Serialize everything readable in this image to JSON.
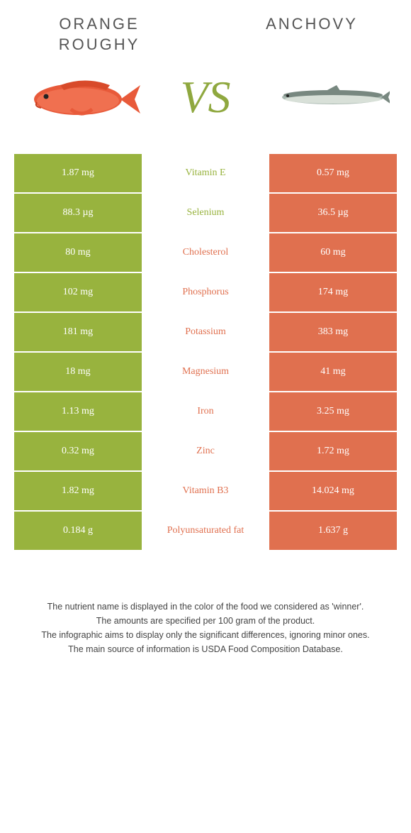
{
  "header": {
    "left_title_line1": "ORANGE",
    "left_title_line2": "ROUGHY",
    "right_title": "ANCHOVY",
    "vs": "VS"
  },
  "colors": {
    "green": "#98b33e",
    "orange": "#e0704f",
    "white": "#ffffff"
  },
  "rows": [
    {
      "left": "1.87 mg",
      "label": "Vitamin E",
      "right": "0.57 mg",
      "winner": "left"
    },
    {
      "left": "88.3 µg",
      "label": "Selenium",
      "right": "36.5 µg",
      "winner": "left"
    },
    {
      "left": "80 mg",
      "label": "Cholesterol",
      "right": "60 mg",
      "winner": "right"
    },
    {
      "left": "102 mg",
      "label": "Phosphorus",
      "right": "174 mg",
      "winner": "right"
    },
    {
      "left": "181 mg",
      "label": "Potassium",
      "right": "383 mg",
      "winner": "right"
    },
    {
      "left": "18 mg",
      "label": "Magnesium",
      "right": "41 mg",
      "winner": "right"
    },
    {
      "left": "1.13 mg",
      "label": "Iron",
      "right": "3.25 mg",
      "winner": "right"
    },
    {
      "left": "0.32 mg",
      "label": "Zinc",
      "right": "1.72 mg",
      "winner": "right"
    },
    {
      "left": "1.82 mg",
      "label": "Vitamin B3",
      "right": "14.024 mg",
      "winner": "right"
    },
    {
      "left": "0.184 g",
      "label": "Polyunsaturated fat",
      "right": "1.637 g",
      "winner": "right"
    }
  ],
  "footer": {
    "line1": "The nutrient name is displayed in the color of the food we considered as 'winner'.",
    "line2": "The amounts are specified per 100 gram of the product.",
    "line3": "The infographic aims to display only the significant differences, ignoring minor ones.",
    "line4": "The main source of information is USDA Food Composition Database."
  }
}
